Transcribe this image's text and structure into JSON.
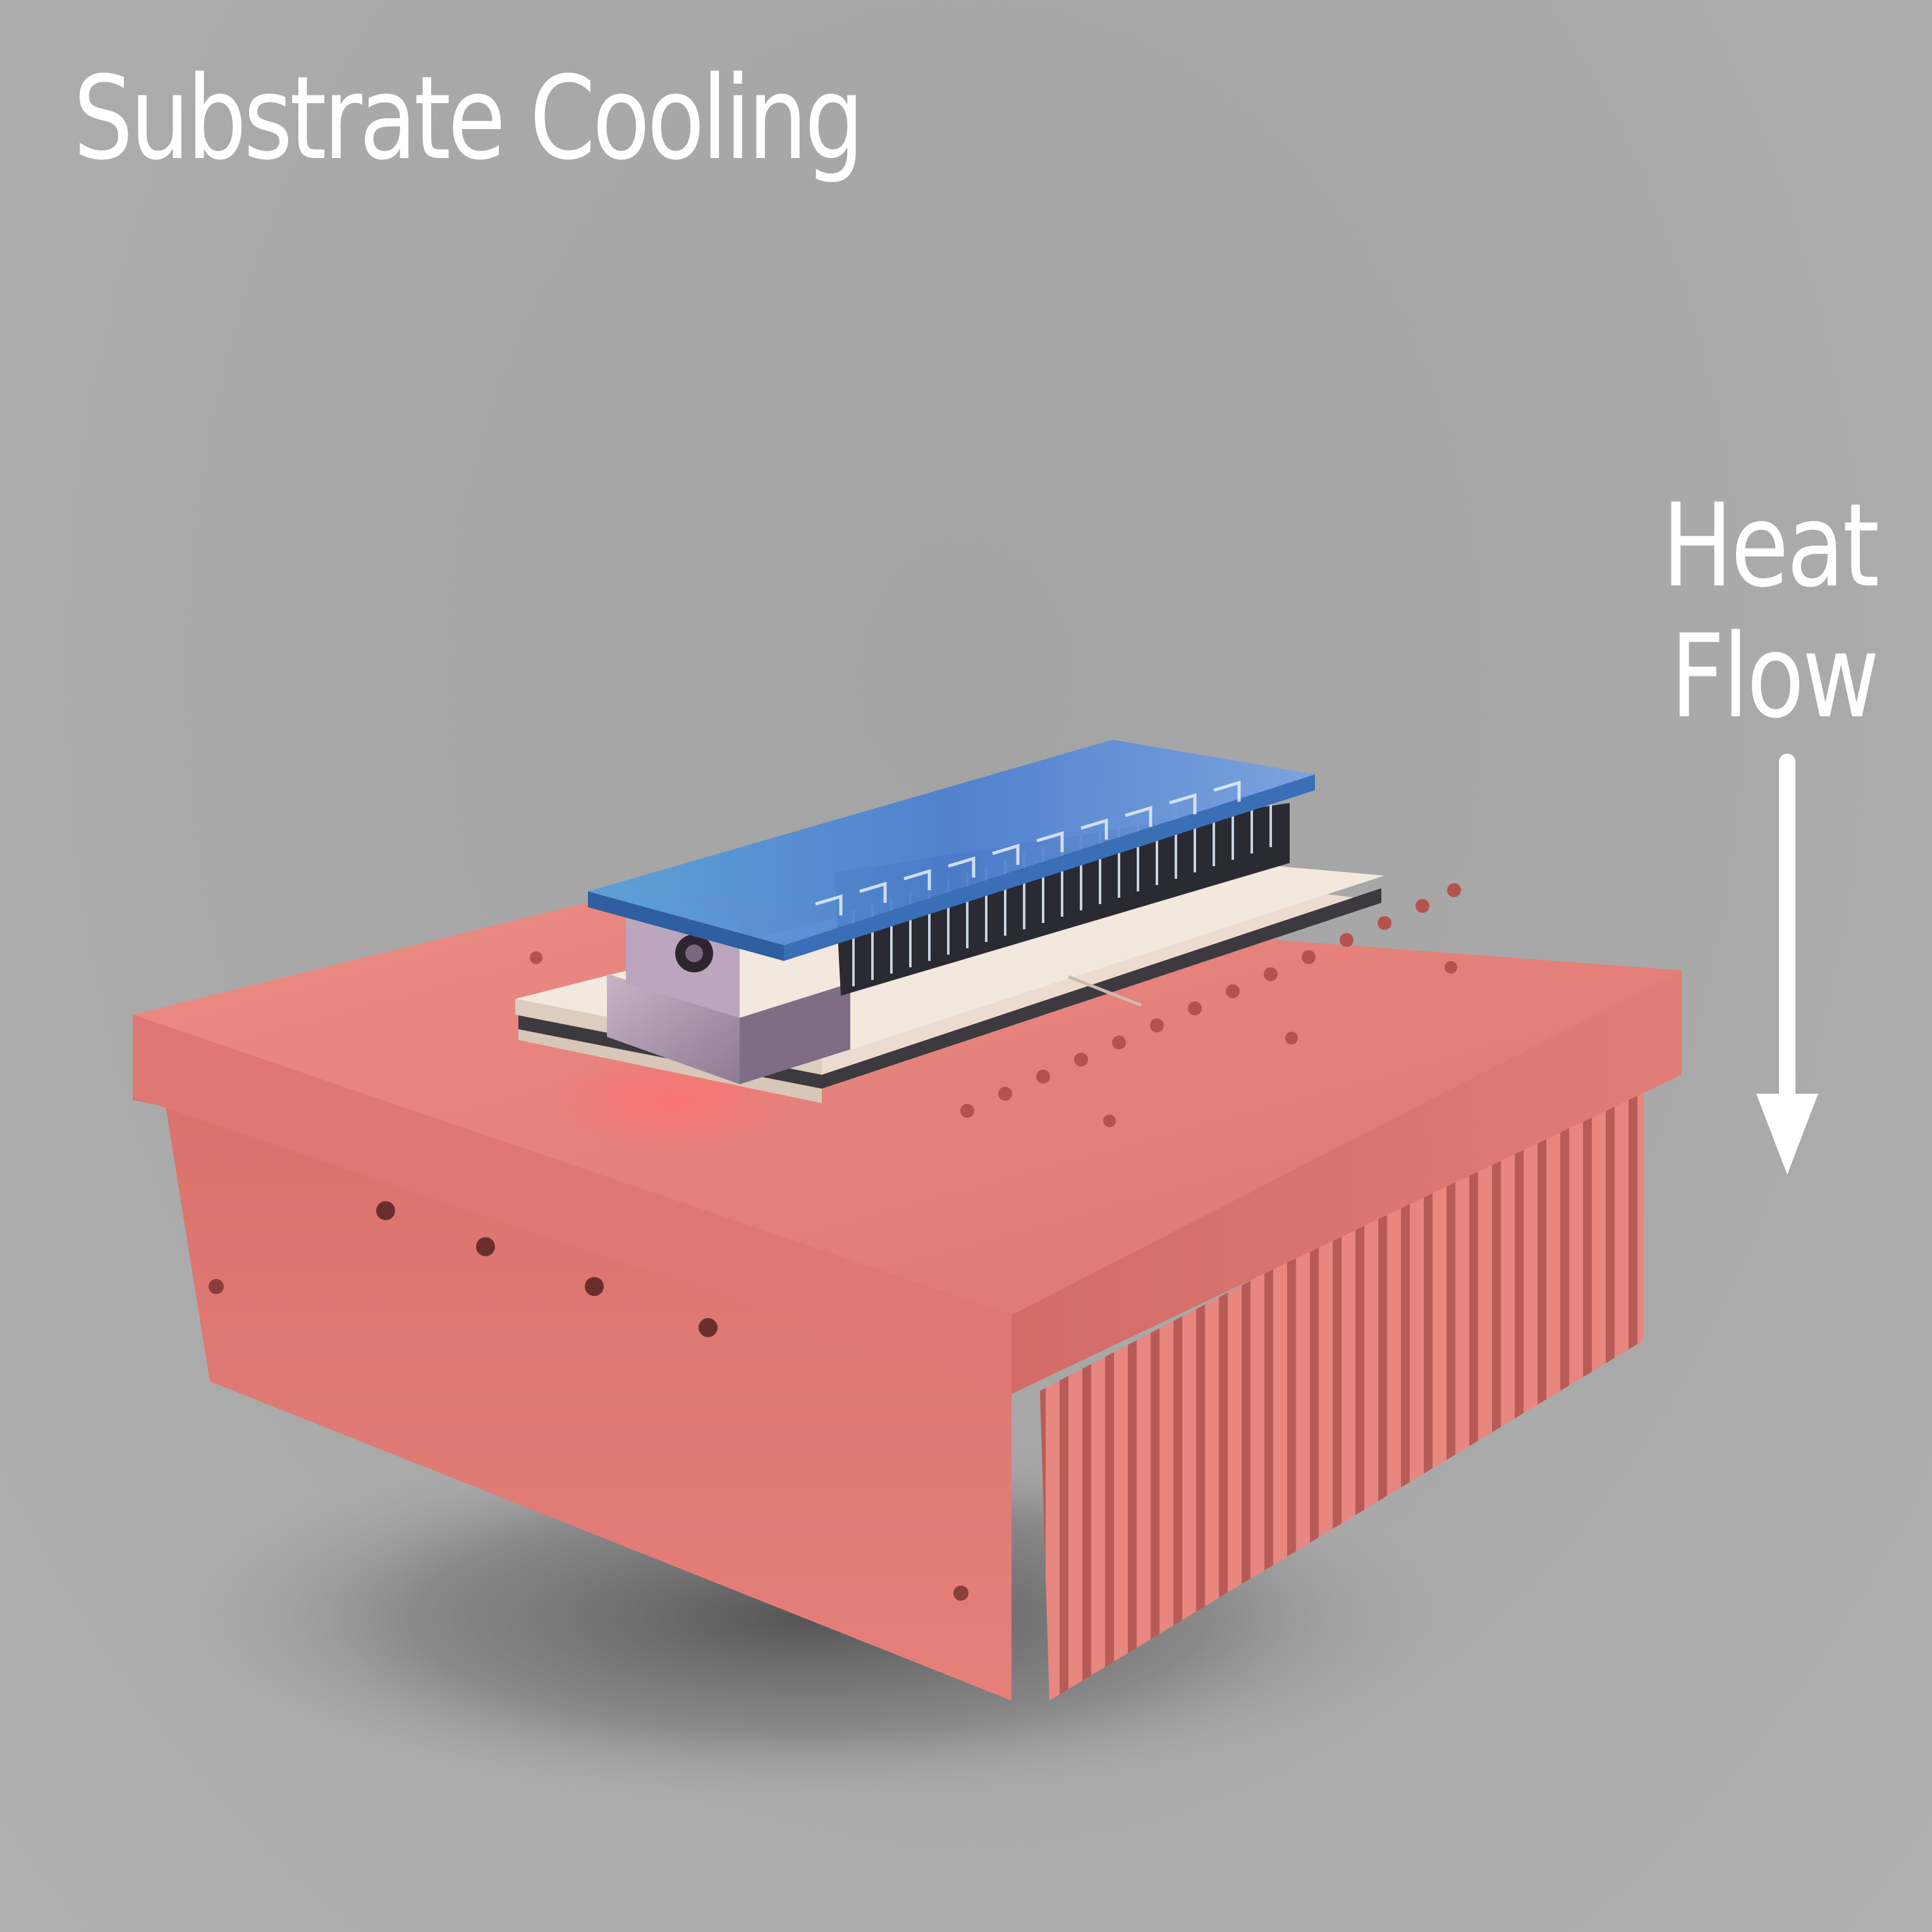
{
  "title": "Substrate Cooling",
  "heat_flow": {
    "line1": "Heat",
    "line2": "Flow",
    "direction": "down"
  },
  "colors": {
    "background": "#aaaaaa",
    "heatsink": "#e37c77",
    "ceramic": "#f2e6dc",
    "chip_glass": "#4a86d6",
    "mount_block": "#b9a2b8",
    "text": "#ffffff"
  },
  "components": [
    "heatsink-base",
    "thermoelectric-module",
    "laser-chip-array",
    "mount-block"
  ]
}
